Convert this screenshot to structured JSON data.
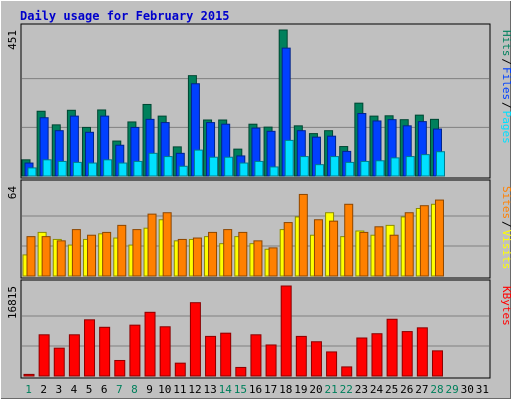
{
  "title": "Daily usage for February 2015",
  "colors": {
    "background": "#c0c0c0",
    "title": "#0000cc",
    "hits": "#00805c",
    "files": "#0040ff",
    "pages": "#00e0ff",
    "visits": "#ffff00",
    "sites": "#ff8000",
    "kbytes": "#ff0000",
    "weekend_day_label": "#00805c",
    "weekday_label": "#000000"
  },
  "chart_data": [
    {
      "type": "bar",
      "panel": "hits-files-pages",
      "ymax_label": "451",
      "legend": [
        {
          "label": "Hits",
          "color": "#00805c"
        },
        {
          "label": "Files",
          "color": "#0040ff"
        },
        {
          "label": "Pages",
          "color": "#00e0ff"
        }
      ],
      "categories": [
        "1",
        "2",
        "3",
        "4",
        "5",
        "6",
        "7",
        "8",
        "9",
        "10",
        "11",
        "12",
        "13",
        "14",
        "15",
        "16",
        "17",
        "18",
        "19",
        "20",
        "21",
        "22",
        "23",
        "24",
        "25",
        "26",
        "27",
        "28",
        "29",
        "30",
        "31"
      ],
      "weekend_days": [
        "1",
        "7",
        "8",
        "14",
        "15",
        "21",
        "22",
        "28",
        "29"
      ],
      "ylim": [
        0,
        451
      ],
      "series": [
        {
          "name": "Hits",
          "values": [
            50,
            200,
            158,
            203,
            150,
            204,
            108,
            167,
            221,
            185,
            90,
            310,
            173,
            173,
            83,
            160,
            151,
            451,
            155,
            131,
            140,
            91,
            225,
            185,
            186,
            174,
            188,
            175,
            null,
            null,
            null
          ]
        },
        {
          "name": "Files",
          "values": [
            40,
            180,
            140,
            185,
            135,
            185,
            95,
            150,
            175,
            165,
            70,
            285,
            165,
            160,
            62,
            148,
            138,
            395,
            140,
            120,
            123,
            76,
            193,
            170,
            174,
            155,
            168,
            145,
            null,
            null,
            null
          ]
        },
        {
          "name": "Pages",
          "values": [
            25,
            50,
            45,
            42,
            40,
            50,
            40,
            45,
            70,
            60,
            30,
            80,
            58,
            58,
            40,
            45,
            28,
            110,
            60,
            35,
            60,
            42,
            45,
            47,
            56,
            60,
            66,
            75,
            null,
            null,
            null
          ]
        }
      ]
    },
    {
      "type": "bar",
      "panel": "visits-sites",
      "ymax_label": "64",
      "legend": [
        {
          "label": "Sites",
          "color": "#ff8000"
        },
        {
          "label": "Visits",
          "color": "#ffff00"
        }
      ],
      "categories": [
        "1",
        "2",
        "3",
        "4",
        "5",
        "6",
        "7",
        "8",
        "9",
        "10",
        "11",
        "12",
        "13",
        "14",
        "15",
        "16",
        "17",
        "18",
        "19",
        "20",
        "21",
        "22",
        "23",
        "24",
        "25",
        "26",
        "27",
        "28",
        "29",
        "30",
        "31"
      ],
      "ylim": [
        0,
        64
      ],
      "series": [
        {
          "name": "Visits",
          "values": [
            15,
            31,
            26,
            22,
            26,
            30,
            27,
            22,
            34,
            40,
            25,
            26,
            28,
            23,
            28,
            23,
            19,
            33,
            42,
            29,
            45,
            28,
            32,
            29,
            36,
            42,
            48,
            51,
            null,
            null,
            null
          ]
        },
        {
          "name": "Sites",
          "values": [
            28,
            28,
            25,
            33,
            29,
            31,
            36,
            33,
            44,
            45,
            26,
            27,
            31,
            33,
            31,
            25,
            20,
            38,
            58,
            40,
            39,
            51,
            31,
            35,
            29,
            45,
            50,
            54,
            null,
            null,
            null
          ]
        }
      ]
    },
    {
      "type": "bar",
      "panel": "kbytes",
      "ymax_label": "16815",
      "legend": [
        {
          "label": "KBytes",
          "color": "#ff0000"
        }
      ],
      "categories": [
        "1",
        "2",
        "3",
        "4",
        "5",
        "6",
        "7",
        "8",
        "9",
        "10",
        "11",
        "12",
        "13",
        "14",
        "15",
        "16",
        "17",
        "18",
        "19",
        "20",
        "21",
        "22",
        "23",
        "24",
        "25",
        "26",
        "27",
        "28",
        "29",
        "30",
        "31"
      ],
      "ylim": [
        0,
        16815
      ],
      "series": [
        {
          "name": "KBytes",
          "values": [
            300,
            7700,
            5200,
            7700,
            10500,
            9100,
            2900,
            9500,
            11900,
            9200,
            2400,
            13700,
            7400,
            8000,
            1600,
            7700,
            5800,
            16815,
            7400,
            6400,
            4500,
            1700,
            7100,
            7900,
            10600,
            8300,
            9000,
            4700,
            null,
            null,
            null
          ]
        }
      ]
    }
  ],
  "x_axis_labels": [
    "1",
    "2",
    "3",
    "4",
    "5",
    "6",
    "7",
    "8",
    "9",
    "10",
    "11",
    "12",
    "13",
    "14",
    "15",
    "16",
    "17",
    "18",
    "19",
    "20",
    "21",
    "22",
    "23",
    "24",
    "25",
    "26",
    "27",
    "28",
    "29",
    "30",
    "31"
  ]
}
